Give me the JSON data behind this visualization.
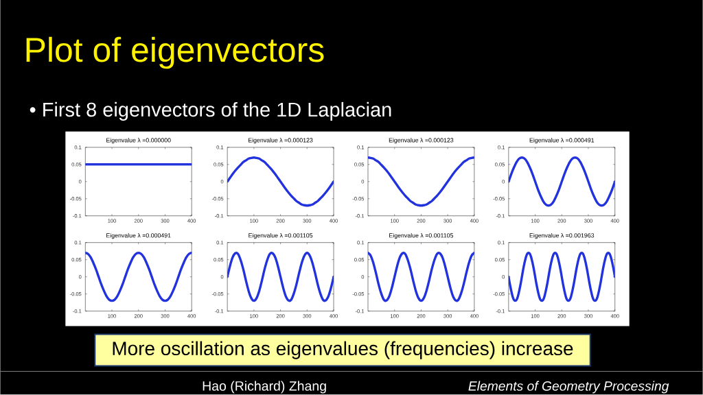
{
  "chart_data": [
    {
      "type": "other",
      "title": "Plot of eigenvectors",
      "subtitle": "• First 8 eigenvectors of the 1D Laplacian",
      "annotations": [
        "More oscillation as eigenvalues (frequencies) increase",
        "Hao (Richard) Zhang",
        "Elements of Geometry Processing"
      ]
    },
    {
      "type": "line",
      "title": "Eigenvalue λ =0.000000",
      "x": [
        0,
        400
      ],
      "values": [
        0.05,
        0.05
      ],
      "color": "#2233dd",
      "xlim": [
        0,
        400
      ],
      "ylim": [
        -0.1,
        0.1
      ],
      "xticks": [
        100,
        200,
        300,
        400
      ],
      "yticks": [
        -0.1,
        -0.05,
        0,
        0.05,
        0.1
      ]
    },
    {
      "type": "line",
      "title": "Eigenvalue λ =0.000123",
      "x": [
        0,
        10,
        20,
        30,
        40,
        50,
        60,
        70,
        80,
        90,
        100,
        110,
        120,
        130,
        140,
        150,
        160,
        170,
        180,
        190,
        200,
        210,
        220,
        230,
        240,
        250,
        260,
        270,
        280,
        290,
        300,
        310,
        320,
        330,
        340,
        350,
        360,
        370,
        380,
        390,
        400
      ],
      "values": [
        0,
        0.011,
        0.022,
        0.032,
        0.041,
        0.049,
        0.057,
        0.062,
        0.067,
        0.069,
        0.07,
        0.069,
        0.067,
        0.062,
        0.057,
        0.049,
        0.041,
        0.032,
        0.022,
        0.011,
        0,
        -0.011,
        -0.022,
        -0.032,
        -0.041,
        -0.049,
        -0.057,
        -0.062,
        -0.067,
        -0.069,
        -0.07,
        -0.069,
        -0.067,
        -0.062,
        -0.057,
        -0.049,
        -0.041,
        -0.032,
        -0.022,
        -0.011,
        0
      ],
      "color": "#2233dd",
      "xlim": [
        0,
        400
      ],
      "ylim": [
        -0.1,
        0.1
      ],
      "xticks": [
        100,
        200,
        300,
        400
      ],
      "yticks": [
        -0.1,
        -0.05,
        0,
        0.05,
        0.1
      ]
    },
    {
      "type": "line",
      "title": "Eigenvalue λ =0.000123",
      "x": [
        0,
        10,
        20,
        30,
        40,
        50,
        60,
        70,
        80,
        90,
        100,
        110,
        120,
        130,
        140,
        150,
        160,
        170,
        180,
        190,
        200,
        210,
        220,
        230,
        240,
        250,
        260,
        270,
        280,
        290,
        300,
        310,
        320,
        330,
        340,
        350,
        360,
        370,
        380,
        390,
        400
      ],
      "values": [
        0.07,
        0.069,
        0.067,
        0.062,
        0.057,
        0.049,
        0.041,
        0.032,
        0.022,
        0.011,
        0,
        -0.011,
        -0.022,
        -0.032,
        -0.041,
        -0.049,
        -0.057,
        -0.062,
        -0.067,
        -0.069,
        -0.07,
        -0.069,
        -0.067,
        -0.062,
        -0.057,
        -0.049,
        -0.041,
        -0.032,
        -0.022,
        -0.011,
        0,
        0.011,
        0.022,
        0.032,
        0.041,
        0.049,
        0.057,
        0.062,
        0.067,
        0.069,
        0.07
      ],
      "color": "#2233dd",
      "xlim": [
        0,
        400
      ],
      "ylim": [
        -0.1,
        0.1
      ],
      "xticks": [
        100,
        200,
        300,
        400
      ],
      "yticks": [
        -0.1,
        -0.05,
        0,
        0.05,
        0.1
      ]
    },
    {
      "type": "line",
      "title": "Eigenvalue λ =0.000491",
      "x": [
        0,
        10,
        20,
        30,
        40,
        50,
        60,
        70,
        80,
        90,
        100,
        110,
        120,
        130,
        140,
        150,
        160,
        170,
        180,
        190,
        200,
        210,
        220,
        230,
        240,
        250,
        260,
        270,
        280,
        290,
        300,
        310,
        320,
        330,
        340,
        350,
        360,
        370,
        380,
        390,
        400
      ],
      "values": [
        0,
        0.022,
        0.041,
        0.057,
        0.067,
        0.07,
        0.067,
        0.057,
        0.041,
        0.022,
        0,
        -0.022,
        -0.041,
        -0.057,
        -0.067,
        -0.07,
        -0.067,
        -0.057,
        -0.041,
        -0.022,
        0,
        0.022,
        0.041,
        0.057,
        0.067,
        0.07,
        0.067,
        0.057,
        0.041,
        0.022,
        0,
        -0.022,
        -0.041,
        -0.057,
        -0.067,
        -0.07,
        -0.067,
        -0.057,
        -0.041,
        -0.022,
        0
      ],
      "color": "#2233dd",
      "xlim": [
        0,
        400
      ],
      "ylim": [
        -0.1,
        0.1
      ],
      "xticks": [
        100,
        200,
        300,
        400
      ],
      "yticks": [
        -0.1,
        -0.05,
        0,
        0.05,
        0.1
      ]
    },
    {
      "type": "line",
      "title": "Eigenvalue λ =0.000491",
      "x": [
        0,
        10,
        20,
        30,
        40,
        50,
        60,
        70,
        80,
        90,
        100,
        110,
        120,
        130,
        140,
        150,
        160,
        170,
        180,
        190,
        200,
        210,
        220,
        230,
        240,
        250,
        260,
        270,
        280,
        290,
        300,
        310,
        320,
        330,
        340,
        350,
        360,
        370,
        380,
        390,
        400
      ],
      "values": [
        0.07,
        0.067,
        0.057,
        0.041,
        0.022,
        0,
        -0.022,
        -0.041,
        -0.057,
        -0.067,
        -0.07,
        -0.067,
        -0.057,
        -0.041,
        -0.022,
        0,
        0.022,
        0.041,
        0.057,
        0.067,
        0.07,
        0.067,
        0.057,
        0.041,
        0.022,
        0,
        -0.022,
        -0.041,
        -0.057,
        -0.067,
        -0.07,
        -0.067,
        -0.057,
        -0.041,
        -0.022,
        0,
        0.022,
        0.041,
        0.057,
        0.067,
        0.07
      ],
      "color": "#2233dd",
      "xlim": [
        0,
        400
      ],
      "ylim": [
        -0.1,
        0.1
      ],
      "xticks": [
        100,
        200,
        300,
        400
      ],
      "yticks": [
        -0.1,
        -0.05,
        0,
        0.05,
        0.1
      ]
    },
    {
      "type": "line",
      "title": "Eigenvalue λ =0.001105",
      "x": [
        0,
        10,
        20,
        30,
        40,
        50,
        60,
        70,
        80,
        90,
        100,
        110,
        120,
        130,
        140,
        150,
        160,
        170,
        180,
        190,
        200,
        210,
        220,
        230,
        240,
        250,
        260,
        270,
        280,
        290,
        300,
        310,
        320,
        330,
        340,
        350,
        360,
        370,
        380,
        390,
        400
      ],
      "values": [
        0,
        0.032,
        0.057,
        0.069,
        0.067,
        0.049,
        0.022,
        -0.011,
        -0.041,
        -0.062,
        -0.07,
        -0.062,
        -0.041,
        -0.011,
        0.022,
        0.049,
        0.067,
        0.069,
        0.057,
        0.032,
        0,
        -0.032,
        -0.057,
        -0.069,
        -0.067,
        -0.049,
        -0.022,
        0.011,
        0.041,
        0.062,
        0.07,
        0.062,
        0.041,
        0.011,
        -0.022,
        -0.049,
        -0.067,
        -0.069,
        -0.057,
        -0.032,
        0
      ],
      "color": "#2233dd",
      "xlim": [
        0,
        400
      ],
      "ylim": [
        -0.1,
        0.1
      ],
      "xticks": [
        100,
        200,
        300,
        400
      ],
      "yticks": [
        -0.1,
        -0.05,
        0,
        0.05,
        0.1
      ]
    },
    {
      "type": "line",
      "title": "Eigenvalue λ =0.001105",
      "x": [
        0,
        10,
        20,
        30,
        40,
        50,
        60,
        70,
        80,
        90,
        100,
        110,
        120,
        130,
        140,
        150,
        160,
        170,
        180,
        190,
        200,
        210,
        220,
        230,
        240,
        250,
        260,
        270,
        280,
        290,
        300,
        310,
        320,
        330,
        340,
        350,
        360,
        370,
        380,
        390,
        400
      ],
      "values": [
        0.07,
        0.062,
        0.041,
        0.011,
        -0.022,
        -0.049,
        -0.067,
        -0.069,
        -0.057,
        -0.032,
        0,
        0.032,
        0.057,
        0.069,
        0.067,
        0.049,
        0.022,
        -0.011,
        -0.041,
        -0.062,
        -0.07,
        -0.062,
        -0.041,
        -0.011,
        0.022,
        0.049,
        0.067,
        0.069,
        0.057,
        0.032,
        0,
        -0.032,
        -0.057,
        -0.069,
        -0.067,
        -0.049,
        -0.022,
        0.011,
        0.041,
        0.062,
        0.07
      ],
      "color": "#2233dd",
      "xlim": [
        0,
        400
      ],
      "ylim": [
        -0.1,
        0.1
      ],
      "xticks": [
        100,
        200,
        300,
        400
      ],
      "yticks": [
        -0.1,
        -0.05,
        0,
        0.05,
        0.1
      ]
    },
    {
      "type": "line",
      "title": "Eigenvalue λ =0.001963",
      "x": [
        0,
        5,
        10,
        15,
        20,
        25,
        30,
        35,
        40,
        45,
        50,
        55,
        60,
        65,
        70,
        75,
        80,
        85,
        90,
        95,
        100,
        105,
        110,
        115,
        120,
        125,
        130,
        135,
        140,
        145,
        150,
        155,
        160,
        165,
        170,
        175,
        180,
        185,
        190,
        195,
        200,
        205,
        210,
        215,
        220,
        225,
        230,
        235,
        240,
        245,
        250,
        255,
        260,
        265,
        270,
        275,
        280,
        285,
        290,
        295,
        300,
        305,
        310,
        315,
        320,
        325,
        330,
        335,
        340,
        345,
        350,
        355,
        360,
        365,
        370,
        375,
        380,
        385,
        390,
        395,
        400
      ],
      "values": [
        0,
        -0.022,
        -0.041,
        -0.057,
        -0.067,
        -0.07,
        -0.067,
        -0.057,
        -0.041,
        -0.022,
        0,
        0.022,
        0.041,
        0.057,
        0.067,
        0.07,
        0.067,
        0.057,
        0.041,
        0.022,
        0,
        -0.022,
        -0.041,
        -0.057,
        -0.067,
        -0.07,
        -0.067,
        -0.057,
        -0.041,
        -0.022,
        0,
        0.022,
        0.041,
        0.057,
        0.067,
        0.07,
        0.067,
        0.057,
        0.041,
        0.022,
        0,
        -0.022,
        -0.041,
        -0.057,
        -0.067,
        -0.07,
        -0.067,
        -0.057,
        -0.041,
        -0.022,
        0,
        0.022,
        0.041,
        0.057,
        0.067,
        0.07,
        0.067,
        0.057,
        0.041,
        0.022,
        0,
        -0.022,
        -0.041,
        -0.057,
        -0.067,
        -0.07,
        -0.067,
        -0.057,
        -0.041,
        -0.022,
        0,
        0.022,
        0.041,
        0.057,
        0.067,
        0.07,
        0.067,
        0.057,
        0.041,
        0.022,
        0
      ],
      "color": "#2233dd",
      "xlim": [
        0,
        400
      ],
      "ylim": [
        -0.1,
        0.1
      ],
      "xticks": [
        100,
        200,
        300,
        400
      ],
      "yticks": [
        -0.1,
        -0.05,
        0,
        0.05,
        0.1
      ]
    }
  ]
}
